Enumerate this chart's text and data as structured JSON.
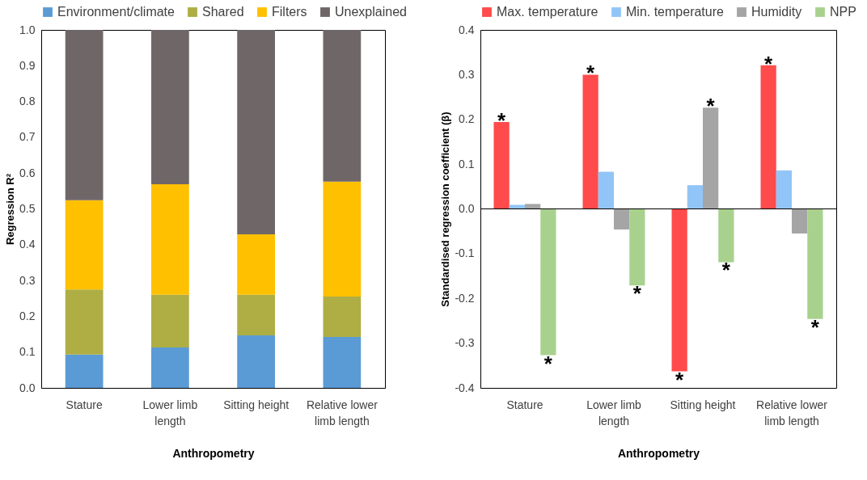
{
  "chart_data": [
    {
      "type": "bar",
      "stacked": true,
      "xlabel": "Anthropometry",
      "ylabel": "Regression R²",
      "legend": "top",
      "categories": [
        "Stature",
        "Lower limb length",
        "Sitting height",
        "Relative lower limb length"
      ],
      "series": [
        {
          "name": "Environment/climate",
          "color": "#5b9bd5",
          "values": [
            0.093,
            0.113,
            0.147,
            0.142
          ]
        },
        {
          "name": "Shared",
          "color": "#aeae45",
          "values": [
            0.182,
            0.147,
            0.113,
            0.113
          ]
        },
        {
          "name": "Filters",
          "color": "#ffc000",
          "values": [
            0.249,
            0.309,
            0.169,
            0.321
          ]
        },
        {
          "name": "Unexplained",
          "color": "#6f6767",
          "values": [
            0.476,
            0.431,
            0.571,
            0.424
          ]
        }
      ],
      "ylim": [
        0,
        1
      ],
      "yticks": [
        {
          "value": 0,
          "label": "0.0"
        },
        {
          "value": 0.1,
          "label": "0.1"
        },
        {
          "value": 0.2,
          "label": "0.2"
        },
        {
          "value": 0.3,
          "label": "0.3"
        },
        {
          "value": 0.4,
          "label": "0.4"
        },
        {
          "value": 0.5,
          "label": "0.5"
        },
        {
          "value": 0.6,
          "label": "0.6"
        },
        {
          "value": 0.7,
          "label": "0.7"
        },
        {
          "value": 0.8,
          "label": "0.8"
        },
        {
          "value": 0.9,
          "label": "0.9"
        },
        {
          "value": 1,
          "label": "1.0"
        }
      ]
    },
    {
      "type": "bar",
      "xlabel": "Anthropometry",
      "ylabel": "Standardised regression coefficient (β)",
      "legend": "top",
      "categories": [
        "Stature",
        "Lower limb length",
        "Sitting height",
        "Relative lower limb length"
      ],
      "series": [
        {
          "name": "Max. temperature",
          "color": "#ff4b4b",
          "values": [
            0.194,
            0.3,
            -0.363,
            0.321
          ],
          "value_labels": [
            "*",
            "*",
            "*",
            "*"
          ]
        },
        {
          "name": "Min. temperature",
          "color": "#92c5f7",
          "values": [
            0.009,
            0.083,
            0.053,
            0.086
          ]
        },
        {
          "name": "Humidity",
          "color": "#a5a5a5",
          "values": [
            0.011,
            -0.046,
            0.226,
            -0.055
          ],
          "value_labels": [
            null,
            null,
            "*",
            null
          ]
        },
        {
          "name": "NPP",
          "color": "#a9d18e",
          "values": [
            -0.327,
            -0.171,
            -0.119,
            -0.246
          ],
          "value_labels": [
            "*",
            "*",
            "*",
            "*"
          ]
        }
      ],
      "ylim": [
        -0.4,
        0.4
      ],
      "yticks": [
        {
          "value": -0.4,
          "label": "-0.4"
        },
        {
          "value": -0.3,
          "label": "-0.3"
        },
        {
          "value": -0.2,
          "label": "-0.2"
        },
        {
          "value": -0.1,
          "label": "-0.1"
        },
        {
          "value": 0,
          "label": "0.0"
        },
        {
          "value": 0.1,
          "label": "0.1"
        },
        {
          "value": 0.2,
          "label": "0.2"
        },
        {
          "value": 0.3,
          "label": "0.3"
        },
        {
          "value": 0.4,
          "label": "0.4"
        }
      ],
      "ref_lines": [
        {
          "axis": "y",
          "value": 0
        }
      ]
    }
  ]
}
